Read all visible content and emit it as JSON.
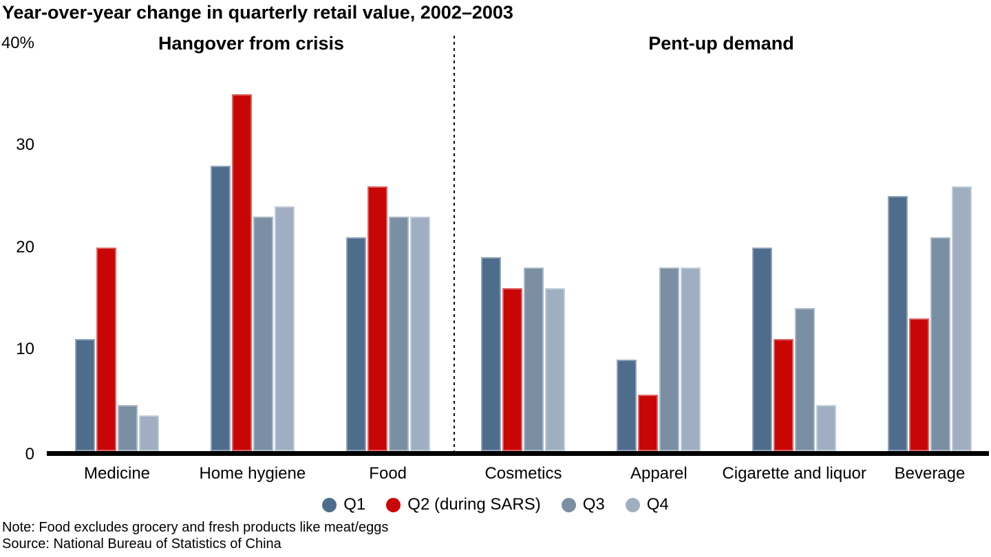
{
  "title": "Year-over-year change in quarterly retail value, 2002–2003",
  "sections": [
    {
      "label": "Hangover from crisis"
    },
    {
      "label": "Pent-up demand"
    }
  ],
  "y_axis": {
    "ticks": [
      {
        "label": "40%",
        "value": 40
      },
      {
        "label": "30",
        "value": 30
      },
      {
        "label": "20",
        "value": 20
      },
      {
        "label": "10",
        "value": 10
      },
      {
        "label": "0",
        "value": 0
      }
    ]
  },
  "legend": [
    {
      "label": "Q1",
      "color": "#4e6d8d"
    },
    {
      "label": "Q2 (during SARS)",
      "color": "#c90606"
    },
    {
      "label": "Q3",
      "color": "#7a8ea4"
    },
    {
      "label": "Q4",
      "color": "#9fafc1"
    }
  ],
  "chart_data": {
    "type": "bar",
    "title": "Year-over-year change in quarterly retail value, 2002–2003",
    "unit": "%",
    "ylim": [
      0,
      40
    ],
    "grid": false,
    "legend_position": "bottom",
    "section_of_category": [
      0,
      0,
      0,
      1,
      1,
      1,
      1
    ],
    "categories": [
      "Medicine",
      "Home hygiene",
      "Food",
      "Cosmetics",
      "Apparel",
      "Cigarette and liquor",
      "Beverage"
    ],
    "series": [
      {
        "name": "Q1",
        "color": "#4e6d8d",
        "values": [
          11,
          28,
          21,
          19,
          9,
          20,
          25
        ]
      },
      {
        "name": "Q2 (during SARS)",
        "color": "#c90606",
        "values": [
          20,
          35,
          26,
          16,
          5.5,
          11,
          13
        ]
      },
      {
        "name": "Q3",
        "color": "#7a8ea4",
        "values": [
          4.5,
          23,
          23,
          18,
          18,
          14,
          21
        ]
      },
      {
        "name": "Q4",
        "color": "#9fafc1",
        "values": [
          3.5,
          24,
          23,
          16,
          18,
          4.5,
          26
        ]
      }
    ]
  },
  "notes": {
    "note": "Note: Food excludes grocery and fresh products like meat/eggs",
    "source": "Source: National Bureau of Statistics of China"
  }
}
